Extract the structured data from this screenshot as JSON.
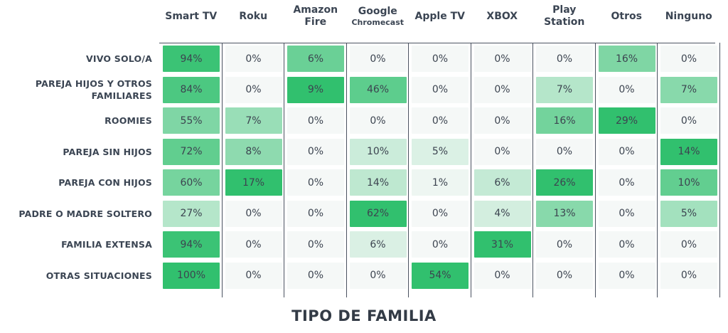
{
  "chart_data": {
    "type": "heatmap",
    "columns": [
      "Smart TV",
      "Roku",
      "Amazon Fire",
      "Google Chromecast",
      "Apple TV",
      "XBOX",
      "Play Station",
      "Otros",
      "Ninguno"
    ],
    "rows": [
      "VIVO SOLO/A",
      "PAREJA HIJOS Y OTROS FAMILIARES",
      "ROOMIES",
      "PAREJA SIN HIJOS",
      "PAREJA CON HIJOS",
      "PADRE O MADRE SOLTERO",
      "FAMILIA EXTENSA",
      "OTRAS SITUACIONES"
    ],
    "values": [
      [
        94,
        0,
        6,
        0,
        0,
        0,
        0,
        16,
        0
      ],
      [
        84,
        0,
        9,
        46,
        0,
        0,
        7,
        0,
        7
      ],
      [
        55,
        7,
        0,
        0,
        0,
        0,
        16,
        29,
        0
      ],
      [
        72,
        8,
        0,
        10,
        5,
        0,
        0,
        0,
        14
      ],
      [
        60,
        17,
        0,
        14,
        1,
        6,
        26,
        0,
        10
      ],
      [
        27,
        0,
        0,
        62,
        0,
        4,
        13,
        0,
        5
      ],
      [
        94,
        0,
        0,
        6,
        0,
        31,
        0,
        0,
        0
      ],
      [
        100,
        0,
        0,
        0,
        54,
        0,
        0,
        0,
        0
      ]
    ],
    "value_suffix": "%",
    "xlabel": "TIPO DE FAMILIA",
    "color_scale": [
      "#f5f8f7",
      "#31c06e"
    ]
  }
}
